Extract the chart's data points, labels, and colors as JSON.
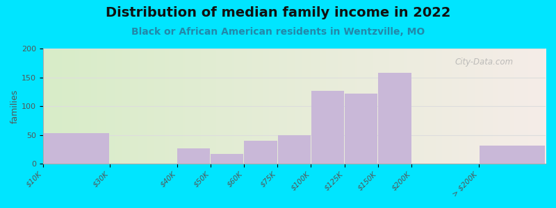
{
  "title": "Distribution of median family income in 2022",
  "subtitle": "Black or African American residents in Wentzville, MO",
  "ylabel": "families",
  "categories": [
    "$10K",
    "$30K",
    "$40K",
    "$50K",
    "$60K",
    "$75K",
    "$100K",
    "$125K",
    "$150K",
    "$200K",
    "> $200K"
  ],
  "bar_lefts": [
    0,
    2,
    4,
    5,
    6,
    7,
    8,
    9,
    10,
    11,
    13
  ],
  "bar_widths": [
    2,
    2,
    1,
    1,
    1,
    1,
    1,
    1,
    1,
    2,
    2
  ],
  "bar_heights": [
    53,
    0,
    27,
    17,
    40,
    50,
    127,
    122,
    158,
    0,
    31
  ],
  "bar_color": "#c9b8d8",
  "bg_color_left": "#d8ecc8",
  "bg_color_right": "#f5ede8",
  "background": "#00e5ff",
  "ylim": [
    0,
    200
  ],
  "yticks": [
    0,
    50,
    100,
    150,
    200
  ],
  "title_fontsize": 14,
  "subtitle_fontsize": 10,
  "watermark": "City-Data.com"
}
